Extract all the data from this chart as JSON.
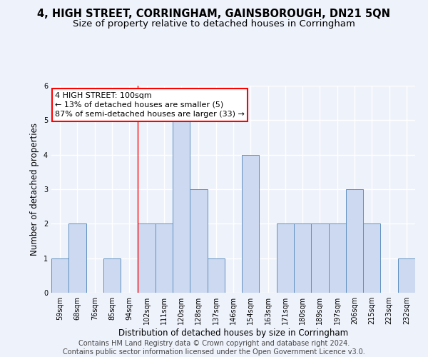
{
  "title": "4, HIGH STREET, CORRINGHAM, GAINSBOROUGH, DN21 5QN",
  "subtitle": "Size of property relative to detached houses in Corringham",
  "xlabel": "Distribution of detached houses by size in Corringham",
  "ylabel": "Number of detached properties",
  "categories": [
    "59sqm",
    "68sqm",
    "76sqm",
    "85sqm",
    "94sqm",
    "102sqm",
    "111sqm",
    "120sqm",
    "128sqm",
    "137sqm",
    "146sqm",
    "154sqm",
    "163sqm",
    "171sqm",
    "180sqm",
    "189sqm",
    "197sqm",
    "206sqm",
    "215sqm",
    "223sqm",
    "232sqm"
  ],
  "values": [
    1,
    2,
    0,
    1,
    0,
    2,
    2,
    5,
    3,
    1,
    0,
    4,
    0,
    2,
    2,
    2,
    2,
    3,
    2,
    0,
    1
  ],
  "bar_color": "#ccd9f0",
  "bar_edge_color": "#6090c0",
  "highlight_line_index": 5,
  "annotation_line1": "4 HIGH STREET: 100sqm",
  "annotation_line2": "← 13% of detached houses are smaller (5)",
  "annotation_line3": "87% of semi-detached houses are larger (33) →",
  "annotation_box_color": "white",
  "annotation_box_edge_color": "red",
  "ylim": [
    0,
    6
  ],
  "yticks": [
    0,
    1,
    2,
    3,
    4,
    5,
    6
  ],
  "background_color": "#eef2fb",
  "grid_color": "white",
  "footer_text": "Contains HM Land Registry data © Crown copyright and database right 2024.\nContains public sector information licensed under the Open Government Licence v3.0.",
  "title_fontsize": 10.5,
  "subtitle_fontsize": 9.5,
  "ylabel_fontsize": 8.5,
  "xlabel_fontsize": 8.5,
  "tick_fontsize": 7,
  "annotation_fontsize": 8,
  "footer_fontsize": 7
}
